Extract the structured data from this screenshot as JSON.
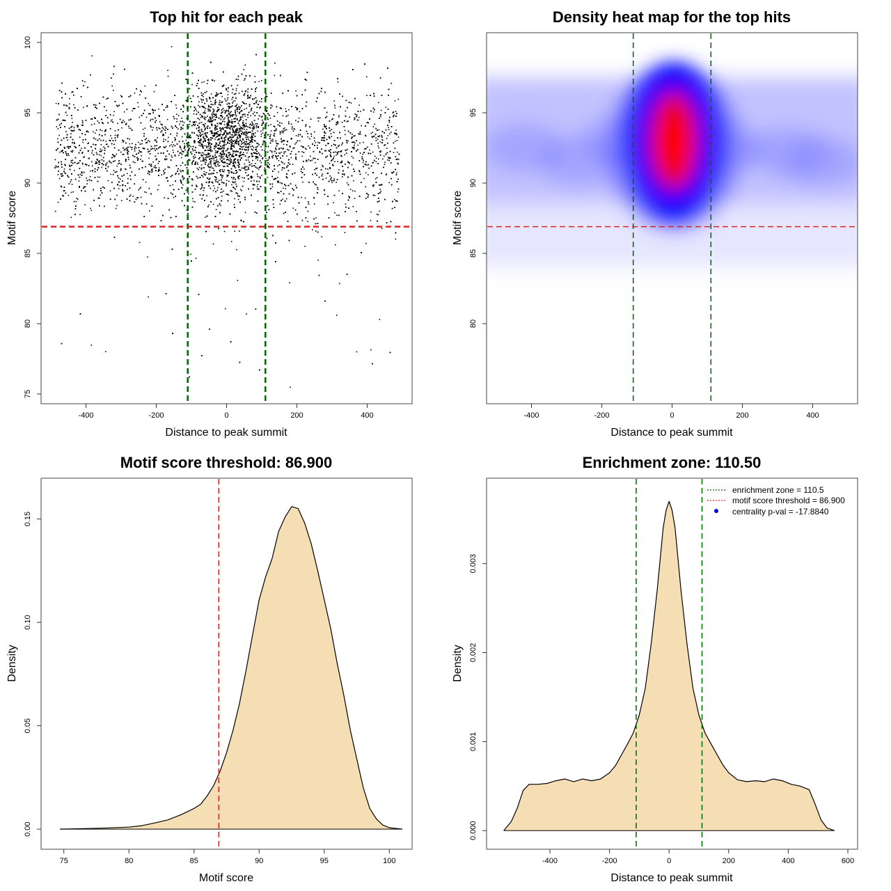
{
  "chart_data": [
    {
      "type": "scatter",
      "title": "Top hit for each peak",
      "xlabel": "Distance to peak summit",
      "ylabel": "Motif score",
      "xlim": [
        -500,
        500
      ],
      "ylim": [
        75,
        100
      ],
      "xticks": [
        -400,
        -200,
        0,
        200,
        400
      ],
      "yticks": [
        75,
        80,
        85,
        90,
        95,
        100
      ],
      "points_note_n": 9000,
      "hlines": [
        {
          "y": 86.9,
          "color": "#dd2222",
          "style": "dashed"
        }
      ],
      "vlines": [
        {
          "x": -110.5,
          "color": "#006400",
          "style": "dashed"
        },
        {
          "x": 110.5,
          "color": "#006400",
          "style": "dashed"
        }
      ],
      "grid": false
    },
    {
      "type": "heatmap",
      "title": "Density heat map for the top hits",
      "xlabel": "Distance to peak summit",
      "ylabel": "Motif score",
      "xlim": [
        -500,
        500
      ],
      "ylim": [
        75,
        100
      ],
      "xticks": [
        -400,
        -200,
        0,
        200,
        400
      ],
      "yticks": [
        80,
        85,
        90,
        95
      ],
      "colors": [
        "#ffffff",
        "#0000ff",
        "#ff0000"
      ],
      "peak": {
        "x": 5,
        "y": 93
      },
      "hlines": [
        {
          "y": 86.9,
          "color": "#dd2222",
          "style": "dashed"
        }
      ],
      "vlines": [
        {
          "x": -110.5,
          "color": "#006400",
          "style": "dashed"
        },
        {
          "x": 110.5,
          "color": "#006400",
          "style": "dashed"
        }
      ],
      "grid": false
    },
    {
      "type": "area",
      "title": "Motif score threshold: 86.900",
      "xlabel": "Motif score",
      "ylabel": "Density",
      "xlim": [
        74,
        101
      ],
      "ylim": [
        -0.005,
        0.165
      ],
      "xticks": [
        75,
        80,
        85,
        90,
        95,
        100
      ],
      "yticks": [
        0.0,
        0.05,
        0.1,
        0.15
      ],
      "ytick_labels": [
        "0.00",
        "0.05",
        "0.10",
        "0.15"
      ],
      "fill": "#f5deb3",
      "x": [
        74.7,
        76,
        78,
        80,
        81,
        82,
        83,
        84,
        84.5,
        85,
        85.5,
        86,
        86.5,
        87,
        87.5,
        88,
        88.5,
        89,
        89.5,
        90,
        90.5,
        91,
        91.5,
        92,
        92.5,
        93,
        93.5,
        94,
        94.5,
        95,
        95.5,
        96,
        96.5,
        97,
        97.5,
        98,
        98.5,
        99,
        99.5,
        100,
        101
      ],
      "y": [
        0.0,
        0.0002,
        0.0005,
        0.001,
        0.0017,
        0.003,
        0.0045,
        0.007,
        0.0085,
        0.01,
        0.012,
        0.016,
        0.021,
        0.028,
        0.037,
        0.048,
        0.061,
        0.077,
        0.094,
        0.111,
        0.122,
        0.131,
        0.144,
        0.151,
        0.156,
        0.155,
        0.148,
        0.138,
        0.125,
        0.111,
        0.097,
        0.08,
        0.065,
        0.048,
        0.034,
        0.02,
        0.01,
        0.005,
        0.002,
        0.0007,
        0.0
      ],
      "vlines": [
        {
          "x": 86.9,
          "color": "#dd2222",
          "style": "dashed"
        }
      ],
      "grid": false
    },
    {
      "type": "area",
      "title": "Enrichment zone: 110.50",
      "xlabel": "Distance to peak summit",
      "ylabel": "Density",
      "xlim": [
        -580,
        600
      ],
      "ylim": [
        -0.0001,
        0.00385
      ],
      "xticks": [
        -400,
        -200,
        0,
        200,
        400,
        600
      ],
      "yticks": [
        0.0,
        0.001,
        0.002,
        0.003
      ],
      "ytick_labels": [
        "0.000",
        "0.001",
        "0.002",
        "0.003"
      ],
      "fill": "#f5deb3",
      "x": [
        -555,
        -530,
        -510,
        -490,
        -470,
        -440,
        -410,
        -380,
        -350,
        -320,
        -290,
        -260,
        -230,
        -200,
        -180,
        -160,
        -140,
        -120,
        -100,
        -80,
        -60,
        -40,
        -20,
        -10,
        0,
        10,
        20,
        40,
        60,
        80,
        100,
        120,
        140,
        160,
        180,
        200,
        230,
        260,
        290,
        320,
        350,
        380,
        410,
        440,
        470,
        490,
        510,
        530,
        555
      ],
      "y": [
        0.0,
        0.0001,
        0.00025,
        0.00045,
        0.00052,
        0.00052,
        0.00053,
        0.00056,
        0.00058,
        0.00055,
        0.00058,
        0.00056,
        0.00058,
        0.00065,
        0.00073,
        0.00085,
        0.00097,
        0.0011,
        0.0013,
        0.0016,
        0.0021,
        0.0027,
        0.0034,
        0.0036,
        0.0037,
        0.0036,
        0.0034,
        0.0027,
        0.0021,
        0.0016,
        0.0013,
        0.0011,
        0.00098,
        0.00086,
        0.00074,
        0.00065,
        0.00057,
        0.00055,
        0.00056,
        0.00055,
        0.00058,
        0.00056,
        0.00052,
        0.0005,
        0.00046,
        0.0003,
        0.00012,
        3e-05,
        0.0
      ],
      "vlines": [
        {
          "x": -110.5,
          "color": "#006400",
          "style": "dashed"
        },
        {
          "x": 110.5,
          "color": "#006400",
          "style": "dashed"
        }
      ],
      "legend": {
        "placement": "top-right",
        "entries": [
          {
            "label": "enrichment zone = 110.5",
            "color": "#006400",
            "kind": "dotted-line"
          },
          {
            "label": "motif score threshold = 86.900",
            "color": "#dd2222",
            "kind": "dotted-line"
          },
          {
            "label": "centrality p-val = -17.8840",
            "color": "#0000cc",
            "kind": "dot"
          }
        ]
      },
      "grid": false
    }
  ]
}
